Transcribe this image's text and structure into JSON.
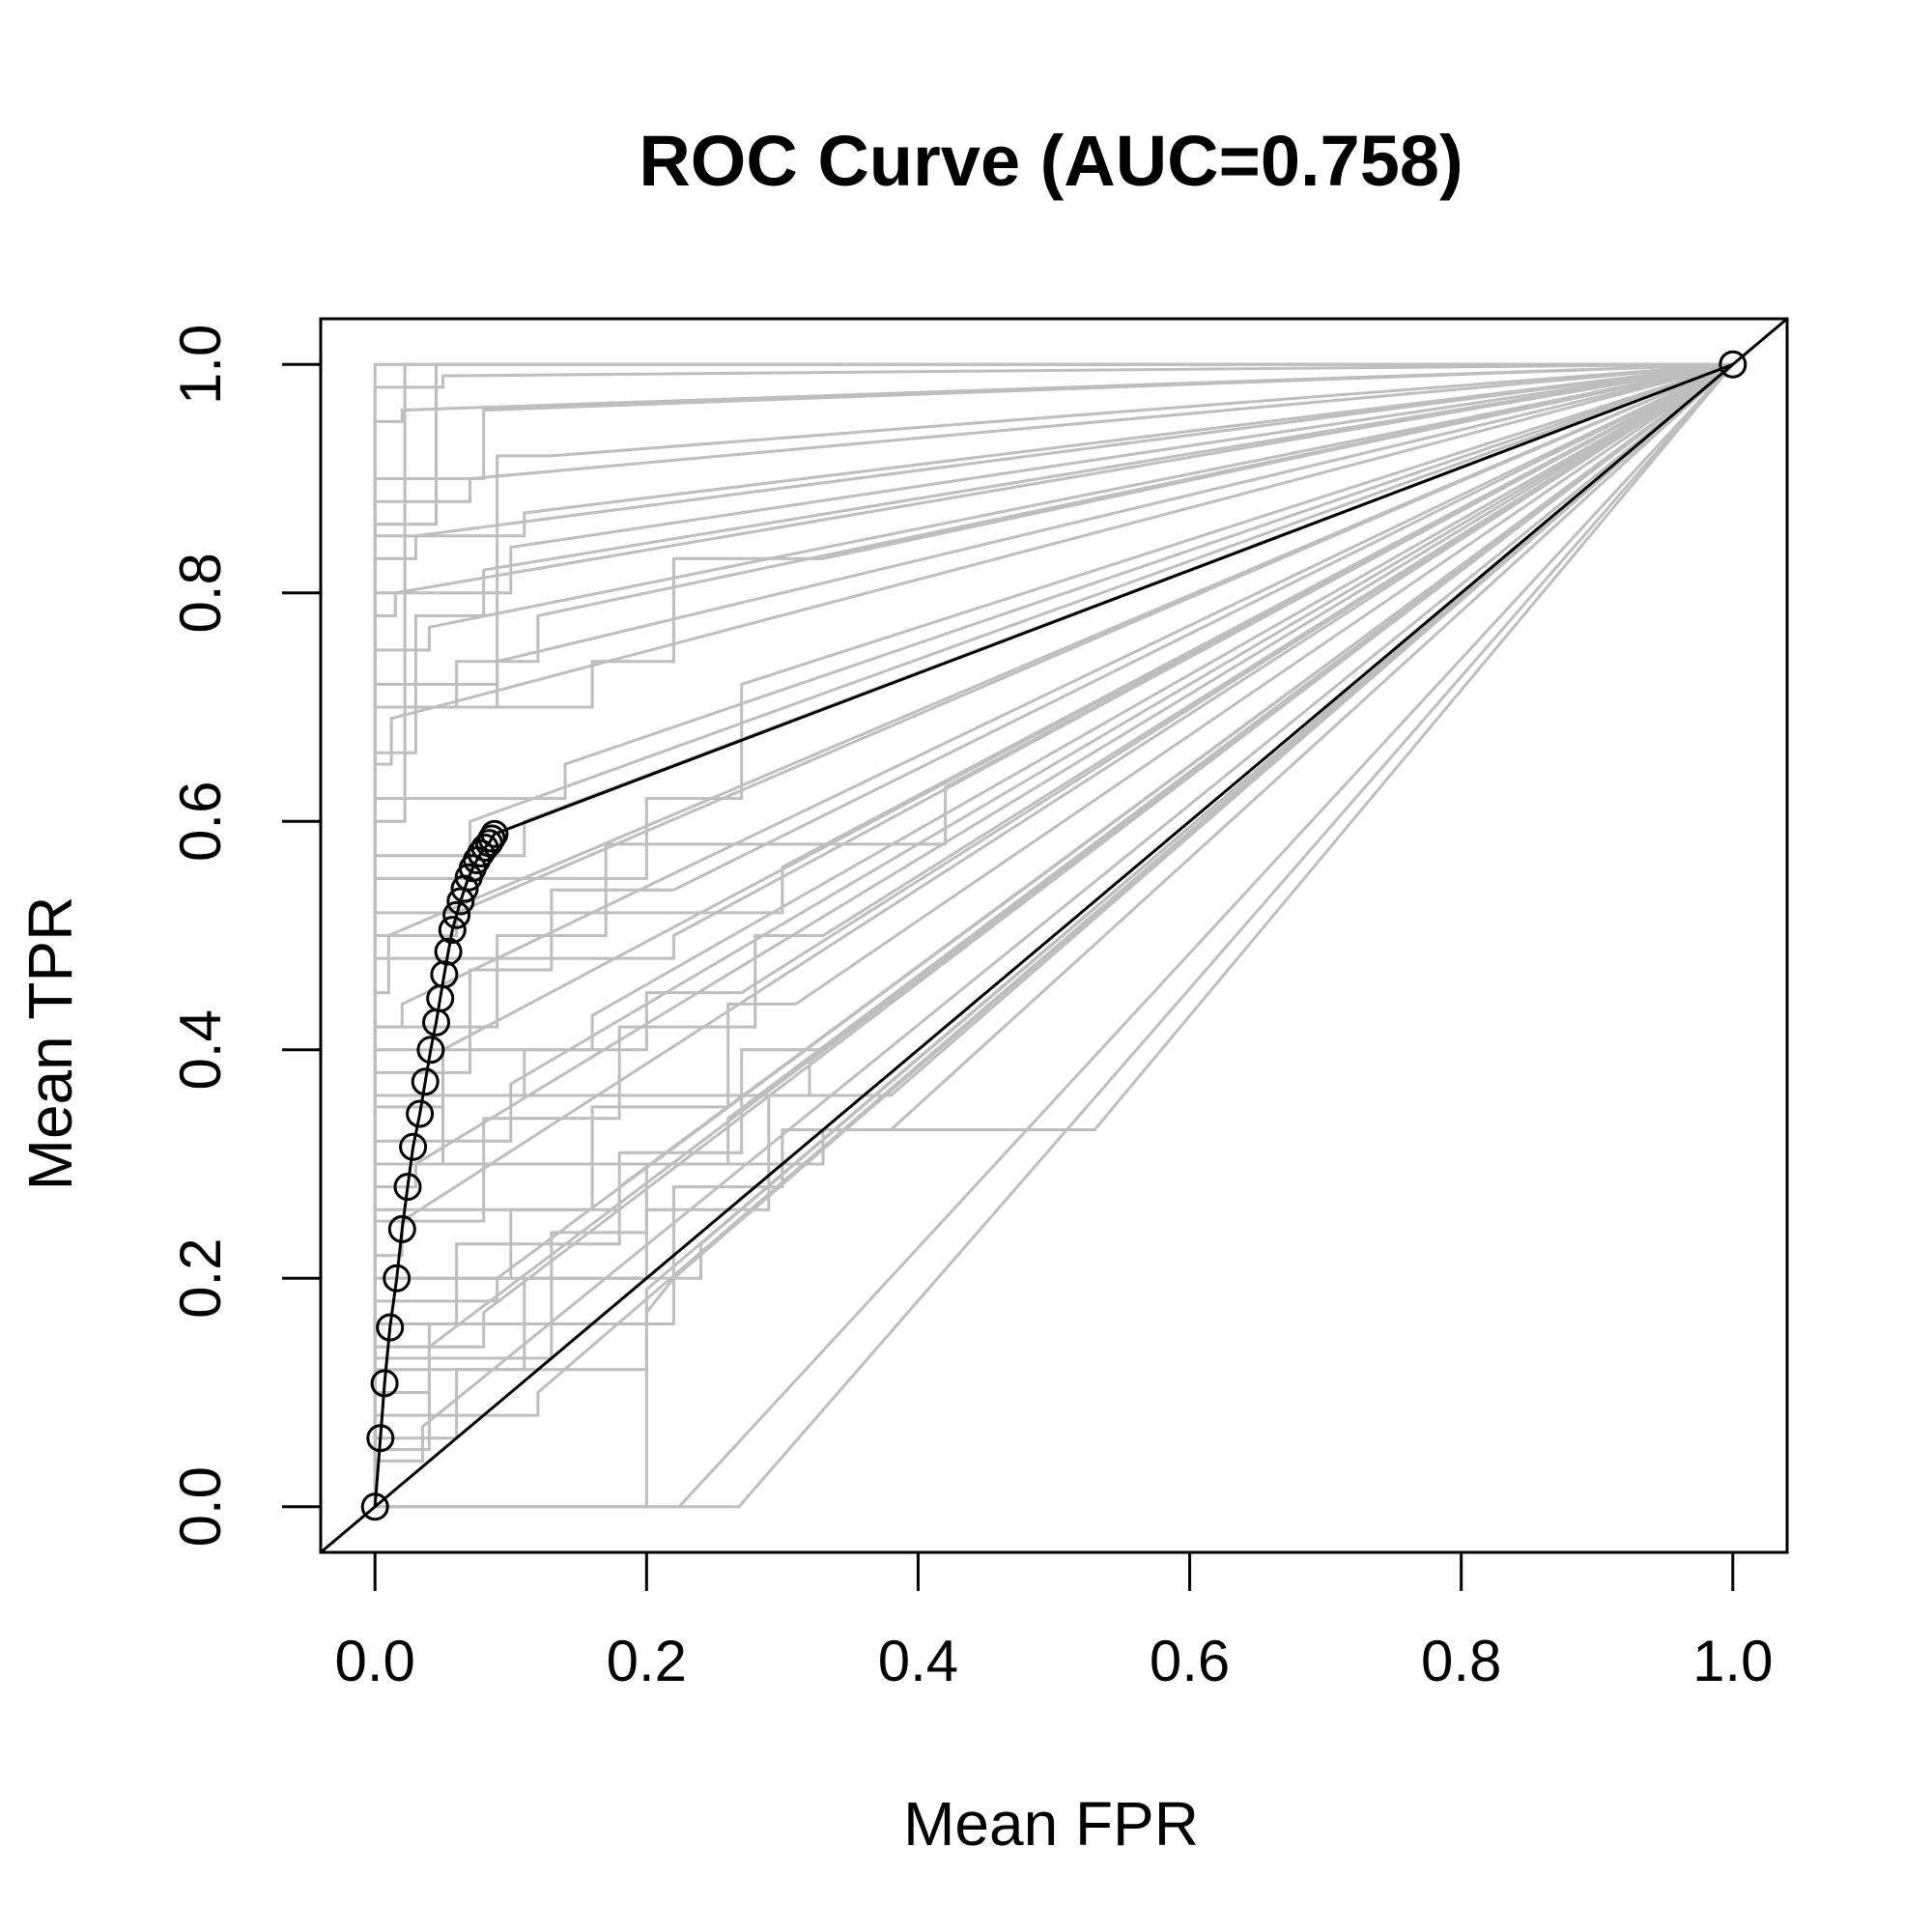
{
  "chart_data": {
    "type": "line",
    "title": "ROC Curve (AUC=0.758)",
    "xlabel": "Mean FPR",
    "ylabel": "Mean TPR",
    "xlim": [
      -0.04,
      1.04
    ],
    "ylim": [
      -0.04,
      1.04
    ],
    "xticks": [
      "0.0",
      "0.2",
      "0.4",
      "0.6",
      "0.8",
      "1.0"
    ],
    "yticks": [
      "0.0",
      "0.2",
      "0.4",
      "0.6",
      "0.8",
      "1.0"
    ],
    "grid": false,
    "legend": null,
    "colors": {
      "mean": "#000000",
      "folds": "#bebebe"
    },
    "series": [
      {
        "role": "mean",
        "x": [
          0.0,
          0.004,
          0.007,
          0.011,
          0.016,
          0.02,
          0.024,
          0.028,
          0.033,
          0.037,
          0.041,
          0.045,
          0.048,
          0.051,
          0.054,
          0.057,
          0.06,
          0.063,
          0.066,
          0.069,
          0.072,
          0.075,
          0.078,
          0.081,
          0.084,
          0.086,
          0.088,
          1.0
        ],
        "y": [
          0.0,
          0.06,
          0.108,
          0.157,
          0.2,
          0.243,
          0.28,
          0.315,
          0.344,
          0.372,
          0.4,
          0.424,
          0.445,
          0.466,
          0.486,
          0.505,
          0.518,
          0.53,
          0.541,
          0.551,
          0.559,
          0.566,
          0.572,
          0.577,
          0.581,
          0.585,
          0.589,
          1.0
        ]
      },
      {
        "role": "folds",
        "curves": [
          {
            "x": [
              0,
              0,
              0.13,
              0.13,
              1
            ],
            "y": [
              0,
              1.0,
              1.0,
              1.0,
              1
            ]
          },
          {
            "x": [
              0,
              0,
              0.045,
              0.045,
              1
            ],
            "y": [
              0,
              0.86,
              0.86,
              1.0,
              1
            ]
          },
          {
            "x": [
              0,
              0,
              0.09,
              0.09,
              0.13,
              0.13,
              1
            ],
            "y": [
              0,
              0.7,
              0.7,
              0.92,
              0.92,
              0.92,
              1
            ]
          },
          {
            "x": [
              0,
              0,
              0.11,
              0.11,
              1
            ],
            "y": [
              0,
              0.85,
              0.85,
              0.87,
              1
            ]
          },
          {
            "x": [
              0,
              0,
              0.03,
              0.03,
              0.08,
              0.08,
              1
            ],
            "y": [
              0,
              0.66,
              0.66,
              0.78,
              0.78,
              0.82,
              1
            ]
          },
          {
            "x": [
              0,
              0.0,
              0.1,
              0.1,
              1
            ],
            "y": [
              0,
              0.8,
              0.8,
              0.84,
              1
            ]
          },
          {
            "x": [
              0,
              0,
              0.06,
              0.06,
              0.12,
              0.12,
              1
            ],
            "y": [
              0,
              0.7,
              0.7,
              0.74,
              0.74,
              0.78,
              1
            ]
          },
          {
            "x": [
              0,
              0,
              0.16,
              0.16,
              0.22,
              0.22,
              0.33,
              1
            ],
            "y": [
              0,
              0.7,
              0.7,
              0.74,
              0.74,
              0.83,
              0.83,
              1
            ]
          },
          {
            "x": [
              0,
              0,
              0.2,
              0.2,
              0.27,
              0.27,
              1
            ],
            "y": [
              0,
              0.55,
              0.55,
              0.62,
              0.62,
              0.72,
              1
            ]
          },
          {
            "x": [
              0,
              0,
              0.07,
              0.07,
              0.13,
              0.13,
              0.22,
              1
            ],
            "y": [
              0,
              0.38,
              0.38,
              0.47,
              0.47,
              0.54,
              0.54,
              1
            ]
          },
          {
            "x": [
              0,
              0,
              0.09,
              0.09,
              0.17,
              0.17,
              0.42,
              0.42,
              1
            ],
            "y": [
              0,
              0.42,
              0.42,
              0.5,
              0.5,
              0.58,
              0.58,
              0.63,
              1
            ]
          },
          {
            "x": [
              0,
              0,
              0.05,
              0.05,
              0.11,
              0.11,
              0.2,
              0.2,
              0.27,
              1
            ],
            "y": [
              0,
              0.3,
              0.3,
              0.36,
              0.36,
              0.4,
              0.4,
              0.45,
              0.45,
              1
            ]
          },
          {
            "x": [
              0,
              0,
              0.08,
              0.08,
              0.18,
              0.18,
              0.28,
              0.28,
              0.33,
              1
            ],
            "y": [
              0,
              0.25,
              0.25,
              0.34,
              0.34,
              0.42,
              0.42,
              0.5,
              0.5,
              1
            ]
          },
          {
            "x": [
              0,
              0,
              0.1,
              0.1,
              0.16,
              0.16,
              0.26,
              0.26,
              0.31,
              1
            ],
            "y": [
              0,
              0.2,
              0.2,
              0.26,
              0.26,
              0.35,
              0.35,
              0.44,
              0.44,
              1
            ]
          },
          {
            "x": [
              0,
              0,
              0.06,
              0.06,
              0.18,
              0.18,
              0.27,
              0.27,
              0.33,
              1
            ],
            "y": [
              0,
              0.16,
              0.16,
              0.23,
              0.23,
              0.31,
              0.31,
              0.4,
              0.4,
              1
            ]
          },
          {
            "x": [
              0,
              0,
              0.11,
              0.11,
              0.2,
              0.2,
              0.29,
              0.29,
              0.38,
              1
            ],
            "y": [
              0,
              0.12,
              0.12,
              0.2,
              0.2,
              0.26,
              0.26,
              0.36,
              0.36,
              1
            ]
          },
          {
            "x": [
              0,
              0,
              0.04,
              0.04,
              0.22,
              0.22,
              0.3,
              0.3,
              0.38,
              1
            ],
            "y": [
              0,
              0.05,
              0.05,
              0.16,
              0.16,
              0.28,
              0.28,
              0.33,
              0.33,
              1
            ]
          },
          {
            "x": [
              0,
              0,
              0.13,
              0.13,
              0.2,
              0.2,
              0.33,
              0.33,
              0.53,
              1
            ],
            "y": [
              0,
              0.13,
              0.13,
              0.24,
              0.24,
              0.3,
              0.3,
              0.33,
              0.33,
              1
            ]
          },
          {
            "x": [
              0,
              0,
              0.06,
              0.06,
              0.2,
              0.2,
              1
            ],
            "y": [
              0,
              0.06,
              0.06,
              0.12,
              0.12,
              0.19,
              1
            ]
          },
          {
            "x": [
              0,
              0.2,
              0.2,
              0.22,
              1
            ],
            "y": [
              0,
              0,
              0.17,
              0.2,
              1
            ]
          },
          {
            "x": [
              0,
              0.224,
              1
            ],
            "y": [
              0,
              0,
              1
            ]
          },
          {
            "x": [
              0,
              0.268,
              1
            ],
            "y": [
              0,
              0,
              1
            ]
          },
          {
            "x": [
              0,
              0,
              0.022,
              0.022,
              1
            ],
            "y": [
              0,
              0.6,
              0.6,
              1.0,
              1
            ]
          },
          {
            "x": [
              0,
              0,
              0.07,
              0.07,
              1
            ],
            "y": [
              0,
              0.55,
              0.55,
              0.6,
              1
            ]
          },
          {
            "x": [
              0,
              0,
              0.01,
              0.01,
              1
            ],
            "y": [
              0,
              0.45,
              0.45,
              0.5,
              1
            ]
          },
          {
            "x": [
              0,
              0,
              0.05,
              0.05,
              1
            ],
            "y": [
              0,
              0.35,
              0.35,
              0.4,
              1
            ]
          },
          {
            "x": [
              0,
              0,
              0.03,
              0.03,
              1
            ],
            "y": [
              0,
              0.28,
              0.28,
              0.3,
              1
            ]
          },
          {
            "x": [
              0,
              0,
              0.02,
              0.02,
              1
            ],
            "y": [
              0,
              0.22,
              0.22,
              0.25,
              1
            ]
          },
          {
            "x": [
              0,
              0,
              0.09,
              0.09,
              1
            ],
            "y": [
              0,
              0.18,
              0.18,
              0.2,
              1
            ]
          },
          {
            "x": [
              0,
              0,
              0.04,
              0.04,
              1
            ],
            "y": [
              0,
              0.1,
              0.1,
              0.14,
              1
            ]
          },
          {
            "x": [
              0,
              0,
              0.015,
              0.015,
              1
            ],
            "y": [
              0,
              0.78,
              0.78,
              0.8,
              1
            ]
          },
          {
            "x": [
              0,
              0,
              0.012,
              0.012,
              1
            ],
            "y": [
              0,
              0.65,
              0.65,
              0.69,
              1
            ]
          },
          {
            "x": [
              0,
              0,
              0.08,
              0.08,
              1
            ],
            "y": [
              0,
              0.9,
              0.9,
              0.96,
              1
            ]
          },
          {
            "x": [
              0,
              0,
              0.04,
              0.04,
              1
            ],
            "y": [
              0,
              0.75,
              0.75,
              0.77,
              1
            ]
          },
          {
            "x": [
              0,
              0,
              0.06,
              0.06,
              1
            ],
            "y": [
              0,
              0.5,
              0.5,
              0.52,
              1
            ]
          },
          {
            "x": [
              0,
              0,
              0.1,
              0.1,
              1
            ],
            "y": [
              0,
              0.32,
              0.32,
              0.37,
              1
            ]
          },
          {
            "x": [
              0,
              0,
              0.16,
              0.16,
              1
            ],
            "y": [
              0,
              0.4,
              0.4,
              0.43,
              1
            ]
          },
          {
            "x": [
              0,
              0,
              0.26,
              0.26,
              1
            ],
            "y": [
              0,
              0.3,
              0.3,
              0.34,
              1
            ]
          },
          {
            "x": [
              0,
              0,
              0.32,
              0.32,
              1
            ],
            "y": [
              0,
              0.36,
              0.36,
              0.39,
              1
            ]
          },
          {
            "x": [
              0,
              0,
              0.22,
              0.22,
              1
            ],
            "y": [
              0,
              0.48,
              0.48,
              0.5,
              1
            ]
          },
          {
            "x": [
              0,
              0,
              0.3,
              0.3,
              1
            ],
            "y": [
              0,
              0.52,
              0.52,
              0.56,
              1
            ]
          },
          {
            "x": [
              0,
              0,
              0.14,
              0.14,
              1
            ],
            "y": [
              0,
              0.62,
              0.62,
              0.65,
              1
            ]
          },
          {
            "x": [
              0,
              0,
              0.18,
              0.18,
              1
            ],
            "y": [
              0,
              0.26,
              0.26,
              0.28,
              1
            ]
          },
          {
            "x": [
              0,
              0,
              0.24,
              0.24,
              1
            ],
            "y": [
              0,
              0.2,
              0.2,
              0.23,
              1
            ]
          },
          {
            "x": [
              0,
              0,
              0.12,
              0.12,
              1
            ],
            "y": [
              0,
              0.08,
              0.08,
              0.1,
              1
            ]
          },
          {
            "x": [
              0,
              0,
              0.05,
              0.05,
              1
            ],
            "y": [
              0,
              0.98,
              0.98,
              0.99,
              1
            ]
          },
          {
            "x": [
              0,
              0,
              0.02,
              0.02,
              1
            ],
            "y": [
              0,
              0.95,
              0.95,
              0.96,
              1
            ]
          },
          {
            "x": [
              0,
              0,
              0.07,
              0.07,
              1
            ],
            "y": [
              0,
              0.88,
              0.88,
              0.9,
              1
            ]
          },
          {
            "x": [
              0,
              0,
              0.03,
              0.03,
              1
            ],
            "y": [
              0,
              0.83,
              0.83,
              0.85,
              1
            ]
          },
          {
            "x": [
              0,
              0,
              0.09,
              0.09,
              1
            ],
            "y": [
              0,
              0.72,
              0.72,
              0.74,
              1
            ]
          },
          {
            "x": [
              0,
              0,
              0.11,
              0.11,
              1
            ],
            "y": [
              0,
              0.57,
              0.57,
              0.6,
              1
            ]
          },
          {
            "x": [
              0,
              0,
              0.02,
              0.02,
              1
            ],
            "y": [
              0,
              0.42,
              0.42,
              0.44,
              1
            ]
          },
          {
            "x": [
              0,
              0,
              0.08,
              0.08,
              1
            ],
            "y": [
              0,
              0.14,
              0.14,
              0.17,
              1
            ]
          },
          {
            "x": [
              0,
              0,
              0.035,
              0.035,
              1
            ],
            "y": [
              0,
              0.04,
              0.04,
              0.07,
              1
            ]
          }
        ]
      }
    ]
  }
}
